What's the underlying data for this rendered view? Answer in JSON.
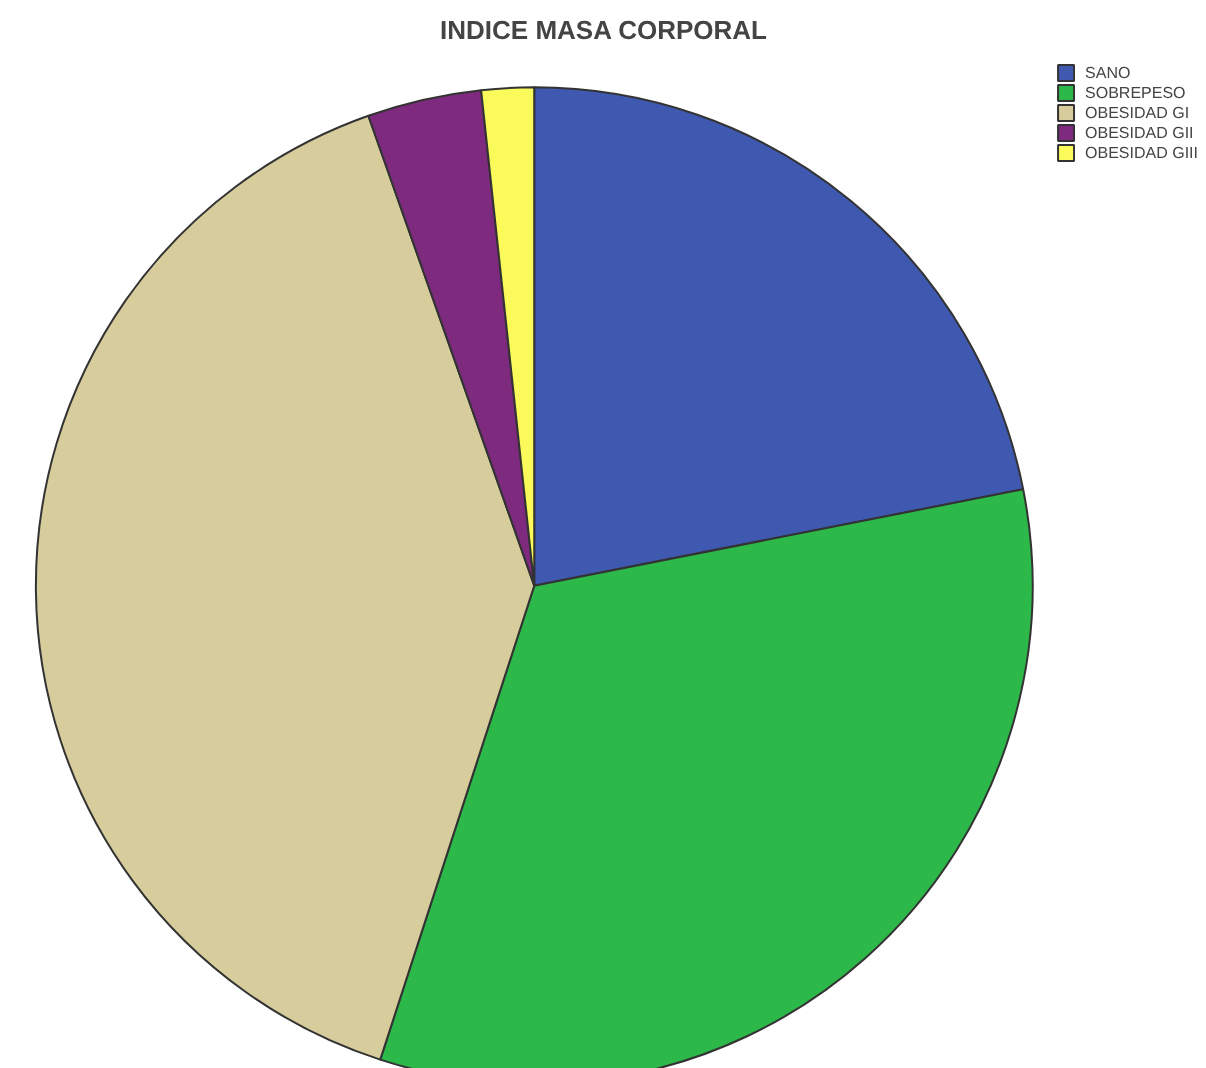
{
  "chart_data": {
    "type": "pie",
    "title": "INDICE MASA CORPORAL",
    "categories": [
      "SANO",
      "SOBREPESO",
      "OBESIDAD GI",
      "OBESIDAD GII",
      "OBESIDAD GIII"
    ],
    "values": [
      21.9,
      33.1,
      39.6,
      3.7,
      1.7
    ],
    "colors": [
      "#3f58b0",
      "#2db84a",
      "#d6cc9c",
      "#7e2a7e",
      "#fafa5a"
    ],
    "legend": "top right"
  }
}
